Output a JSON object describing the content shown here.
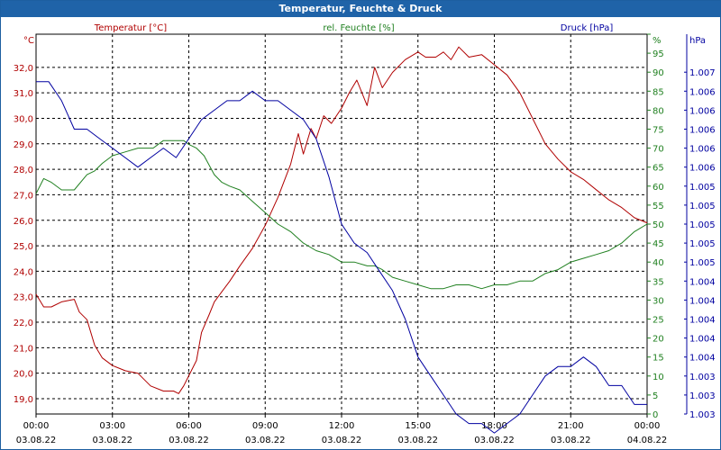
{
  "window": {
    "title": "Temperatur, Feuchte & Druck"
  },
  "chart_data": {
    "type": "line",
    "title": "Temperatur, Feuchte & Druck",
    "grid": true,
    "legend_placement": "top",
    "x_ticks": [
      {
        "time": "00:00",
        "date": "03.08.22"
      },
      {
        "time": "03:00",
        "date": "03.08.22"
      },
      {
        "time": "06:00",
        "date": "03.08.22"
      },
      {
        "time": "09:00",
        "date": "03.08.22"
      },
      {
        "time": "12:00",
        "date": "03.08.22"
      },
      {
        "time": "15:00",
        "date": "03.08.22"
      },
      {
        "time": "18:00",
        "date": "03.08.22"
      },
      {
        "time": "21:00",
        "date": "03.08.22"
      },
      {
        "time": "00:00",
        "date": "04.08.22"
      }
    ],
    "x_range_hours": [
      0,
      24
    ],
    "axes": {
      "temperature": {
        "unit": "°C",
        "color": "#b00000",
        "range": [
          18.4,
          33.3
        ],
        "ticks": [
          {
            "v": 19.0,
            "t": "19,0"
          },
          {
            "v": 20.0,
            "t": "20,0"
          },
          {
            "v": 21.0,
            "t": "21,0"
          },
          {
            "v": 22.0,
            "t": "22,0"
          },
          {
            "v": 23.0,
            "t": "23,0"
          },
          {
            "v": 24.0,
            "t": "24,0"
          },
          {
            "v": 25.0,
            "t": "25,0"
          },
          {
            "v": 26.0,
            "t": "26,0"
          },
          {
            "v": 27.0,
            "t": "27,0"
          },
          {
            "v": 28.0,
            "t": "28,0"
          },
          {
            "v": 29.0,
            "t": "29,0"
          },
          {
            "v": 30.0,
            "t": "30,0"
          },
          {
            "v": 31.0,
            "t": "31,0"
          },
          {
            "v": 32.0,
            "t": "32,0"
          }
        ]
      },
      "humidity": {
        "unit": "%",
        "color": "#208020",
        "range": [
          0,
          100
        ],
        "ticks": [
          0,
          5,
          10,
          15,
          20,
          25,
          30,
          35,
          40,
          45,
          50,
          55,
          60,
          65,
          70,
          75,
          80,
          85,
          90,
          95,
          100
        ]
      },
      "pressure": {
        "unit": "hPa",
        "color": "#0000a0",
        "range": [
          1003,
          1007
        ],
        "ticks": [
          {
            "v": 1003.0,
            "t": "1.003"
          },
          {
            "v": 1003.2,
            "t": "1.003"
          },
          {
            "v": 1003.4,
            "t": "1.003"
          },
          {
            "v": 1003.6,
            "t": "1.004"
          },
          {
            "v": 1003.8,
            "t": "1.004"
          },
          {
            "v": 1004.0,
            "t": "1.004"
          },
          {
            "v": 1004.2,
            "t": "1.004"
          },
          {
            "v": 1004.4,
            "t": "1.004"
          },
          {
            "v": 1004.6,
            "t": "1.005"
          },
          {
            "v": 1004.8,
            "t": "1.005"
          },
          {
            "v": 1005.0,
            "t": "1.005"
          },
          {
            "v": 1005.2,
            "t": "1.005"
          },
          {
            "v": 1005.4,
            "t": "1.005"
          },
          {
            "v": 1005.6,
            "t": "1.006"
          },
          {
            "v": 1005.8,
            "t": "1.006"
          },
          {
            "v": 1006.0,
            "t": "1.006"
          },
          {
            "v": 1006.2,
            "t": "1.006"
          },
          {
            "v": 1006.4,
            "t": "1.006"
          },
          {
            "v": 1006.6,
            "t": "1.007"
          }
        ]
      }
    },
    "series": [
      {
        "name": "Temperatur [°C]",
        "axis": "temperature",
        "color": "#b00000",
        "points": [
          [
            0,
            23.1
          ],
          [
            0.3,
            22.6
          ],
          [
            0.6,
            22.6
          ],
          [
            1.0,
            22.8
          ],
          [
            1.5,
            22.9
          ],
          [
            1.7,
            22.4
          ],
          [
            2.0,
            22.1
          ],
          [
            2.3,
            21.1
          ],
          [
            2.6,
            20.6
          ],
          [
            3.0,
            20.3
          ],
          [
            3.5,
            20.1
          ],
          [
            4.0,
            20.0
          ],
          [
            4.5,
            19.5
          ],
          [
            5.0,
            19.3
          ],
          [
            5.4,
            19.3
          ],
          [
            5.6,
            19.2
          ],
          [
            5.8,
            19.5
          ],
          [
            6.0,
            19.9
          ],
          [
            6.3,
            20.5
          ],
          [
            6.5,
            21.6
          ],
          [
            6.8,
            22.3
          ],
          [
            7.0,
            22.8
          ],
          [
            7.3,
            23.2
          ],
          [
            7.6,
            23.6
          ],
          [
            8.0,
            24.2
          ],
          [
            8.5,
            24.9
          ],
          [
            9.0,
            25.8
          ],
          [
            9.5,
            26.9
          ],
          [
            10.0,
            28.2
          ],
          [
            10.3,
            29.4
          ],
          [
            10.5,
            28.6
          ],
          [
            10.8,
            29.6
          ],
          [
            11.0,
            29.2
          ],
          [
            11.3,
            30.1
          ],
          [
            11.6,
            29.8
          ],
          [
            12.0,
            30.4
          ],
          [
            12.3,
            31.0
          ],
          [
            12.6,
            31.5
          ],
          [
            13.0,
            30.5
          ],
          [
            13.3,
            32.0
          ],
          [
            13.6,
            31.2
          ],
          [
            14.0,
            31.8
          ],
          [
            14.5,
            32.3
          ],
          [
            15.0,
            32.6
          ],
          [
            15.3,
            32.4
          ],
          [
            15.7,
            32.4
          ],
          [
            16.0,
            32.6
          ],
          [
            16.3,
            32.3
          ],
          [
            16.6,
            32.8
          ],
          [
            17.0,
            32.4
          ],
          [
            17.5,
            32.5
          ],
          [
            18.0,
            32.1
          ],
          [
            18.5,
            31.7
          ],
          [
            19.0,
            31.0
          ],
          [
            19.5,
            30.0
          ],
          [
            20.0,
            29.0
          ],
          [
            20.5,
            28.4
          ],
          [
            21.0,
            27.9
          ],
          [
            21.5,
            27.6
          ],
          [
            22.0,
            27.2
          ],
          [
            22.5,
            26.8
          ],
          [
            23.0,
            26.5
          ],
          [
            23.5,
            26.1
          ],
          [
            24.0,
            25.9
          ]
        ]
      },
      {
        "name": "rel. Feuchte [%]",
        "axis": "humidity",
        "color": "#208020",
        "points": [
          [
            0,
            58
          ],
          [
            0.3,
            62
          ],
          [
            0.6,
            61
          ],
          [
            1.0,
            59
          ],
          [
            1.5,
            59
          ],
          [
            2.0,
            63
          ],
          [
            2.3,
            64
          ],
          [
            2.6,
            66
          ],
          [
            3.0,
            68
          ],
          [
            3.5,
            69
          ],
          [
            4.0,
            70
          ],
          [
            4.3,
            70
          ],
          [
            4.6,
            70
          ],
          [
            5.0,
            72
          ],
          [
            5.5,
            72
          ],
          [
            5.8,
            72
          ],
          [
            6.0,
            71
          ],
          [
            6.3,
            70
          ],
          [
            6.6,
            68
          ],
          [
            7.0,
            63
          ],
          [
            7.3,
            61
          ],
          [
            7.6,
            60
          ],
          [
            8.0,
            59
          ],
          [
            8.5,
            56
          ],
          [
            9.0,
            53
          ],
          [
            9.5,
            50
          ],
          [
            10.0,
            48
          ],
          [
            10.5,
            45
          ],
          [
            11.0,
            43
          ],
          [
            11.5,
            42
          ],
          [
            12.0,
            40
          ],
          [
            12.5,
            40
          ],
          [
            13.0,
            39
          ],
          [
            13.3,
            39
          ],
          [
            13.6,
            38
          ],
          [
            14.0,
            36
          ],
          [
            14.5,
            35
          ],
          [
            15.0,
            34
          ],
          [
            15.5,
            33
          ],
          [
            16.0,
            33
          ],
          [
            16.5,
            34
          ],
          [
            17.0,
            34
          ],
          [
            17.5,
            33
          ],
          [
            18.0,
            34
          ],
          [
            18.5,
            34
          ],
          [
            19.0,
            35
          ],
          [
            19.5,
            35
          ],
          [
            20.0,
            37
          ],
          [
            20.5,
            38
          ],
          [
            21.0,
            40
          ],
          [
            21.5,
            41
          ],
          [
            22.0,
            42
          ],
          [
            22.5,
            43
          ],
          [
            23.0,
            45
          ],
          [
            23.5,
            48
          ],
          [
            24.0,
            50
          ]
        ]
      },
      {
        "name": "Druck [hPa]",
        "axis": "pressure",
        "color": "#0000a0",
        "points": [
          [
            0,
            1006.5
          ],
          [
            0.5,
            1006.5
          ],
          [
            1.0,
            1006.3
          ],
          [
            1.5,
            1006.0
          ],
          [
            2.0,
            1006.0
          ],
          [
            2.5,
            1005.9
          ],
          [
            3.0,
            1005.8
          ],
          [
            3.5,
            1005.7
          ],
          [
            4.0,
            1005.6
          ],
          [
            4.5,
            1005.7
          ],
          [
            5.0,
            1005.8
          ],
          [
            5.5,
            1005.7
          ],
          [
            6.0,
            1005.9
          ],
          [
            6.5,
            1006.1
          ],
          [
            7.0,
            1006.2
          ],
          [
            7.5,
            1006.3
          ],
          [
            8.0,
            1006.3
          ],
          [
            8.5,
            1006.4
          ],
          [
            9.0,
            1006.3
          ],
          [
            9.5,
            1006.3
          ],
          [
            10.0,
            1006.2
          ],
          [
            10.5,
            1006.1
          ],
          [
            11.0,
            1005.9
          ],
          [
            11.5,
            1005.5
          ],
          [
            12.0,
            1005.0
          ],
          [
            12.5,
            1004.8
          ],
          [
            13.0,
            1004.7
          ],
          [
            13.5,
            1004.5
          ],
          [
            14.0,
            1004.3
          ],
          [
            14.5,
            1004.0
          ],
          [
            15.0,
            1003.6
          ],
          [
            15.5,
            1003.4
          ],
          [
            16.0,
            1003.2
          ],
          [
            16.5,
            1003.0
          ],
          [
            17.0,
            1002.9
          ],
          [
            17.5,
            1002.9
          ],
          [
            18.0,
            1002.8
          ],
          [
            18.5,
            1002.9
          ],
          [
            19.0,
            1003.0
          ],
          [
            19.5,
            1003.2
          ],
          [
            20.0,
            1003.4
          ],
          [
            20.5,
            1003.5
          ],
          [
            21.0,
            1003.5
          ],
          [
            21.5,
            1003.6
          ],
          [
            22.0,
            1003.5
          ],
          [
            22.5,
            1003.3
          ],
          [
            23.0,
            1003.3
          ],
          [
            23.5,
            1003.1
          ],
          [
            24.0,
            1003.1
          ]
        ]
      }
    ]
  }
}
